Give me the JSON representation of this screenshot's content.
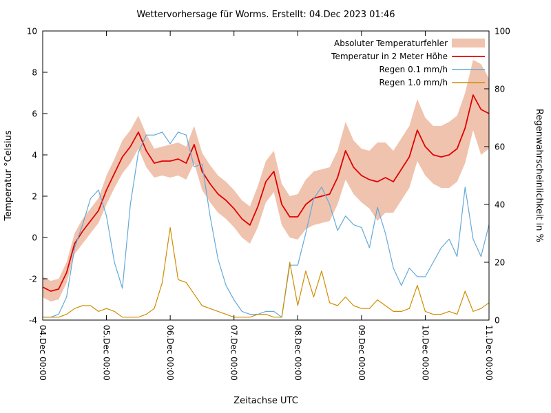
{
  "chart_data": {
    "type": "line",
    "title": "Wettervorhersage für Worms. Erstellt: 04.Dec 2023 01:46",
    "xlabel": "Zeitachse UTC",
    "ylabel_left": "Temperatur °Celsius",
    "ylabel_right": "Regenwahrscheinlichkeit in %",
    "grid": false,
    "legend_position": "top-right-inside",
    "x_step_hours": 3,
    "x_range_hours": [
      0,
      168
    ],
    "x_tick_labels": [
      "04.Dec 00:00",
      "05.Dec 00:00",
      "06.Dec 00:00",
      "07.Dec 00:00",
      "08.Dec 00:00",
      "09.Dec 00:00",
      "10.Dec 00:00",
      "11.Dec 00:00"
    ],
    "y_left": {
      "min": -4,
      "max": 10,
      "ticks": [
        -4,
        -2,
        0,
        2,
        4,
        6,
        8,
        10
      ]
    },
    "y_right": {
      "min": 0,
      "max": 100,
      "ticks": [
        0,
        20,
        40,
        60,
        80,
        100
      ]
    },
    "axis_color": "#000000",
    "series": [
      {
        "name": "Absoluter Temperaturfehler",
        "type": "band",
        "axis": "left",
        "color": "#f0c3ae",
        "description": "half-width of error band around temperature, °C",
        "values": [
          0.5,
          0.5,
          0.5,
          0.5,
          0.5,
          0.6,
          0.6,
          0.6,
          0.7,
          0.7,
          0.8,
          0.8,
          0.8,
          0.8,
          0.7,
          0.7,
          0.8,
          0.8,
          0.8,
          0.9,
          0.9,
          0.9,
          0.9,
          0.9,
          0.9,
          0.9,
          0.9,
          1.0,
          1.0,
          1.0,
          1.0,
          1.0,
          1.1,
          1.2,
          1.3,
          1.3,
          1.3,
          1.3,
          1.4,
          1.3,
          1.3,
          1.4,
          1.9,
          1.7,
          1.5,
          1.5,
          1.5,
          1.5,
          1.4,
          1.4,
          1.5,
          1.6,
          1.6,
          1.7,
          1.7,
          2.2,
          1.7
        ]
      },
      {
        "name": "Temperatur in 2 Meter Höhe",
        "type": "line",
        "axis": "left",
        "color": "#e00000",
        "unit": "°C",
        "values": [
          -2.4,
          -2.6,
          -2.5,
          -1.7,
          -0.3,
          0.3,
          0.8,
          1.3,
          2.3,
          3.1,
          3.9,
          4.4,
          5.1,
          4.2,
          3.6,
          3.7,
          3.7,
          3.8,
          3.6,
          4.5,
          3.2,
          2.6,
          2.1,
          1.8,
          1.4,
          0.9,
          0.6,
          1.5,
          2.7,
          3.2,
          1.6,
          1.0,
          1.0,
          1.6,
          1.9,
          2.0,
          2.1,
          2.9,
          4.2,
          3.4,
          3.0,
          2.8,
          2.7,
          2.9,
          2.7,
          3.3,
          3.9,
          5.2,
          4.4,
          4.0,
          3.9,
          4.0,
          4.3,
          5.3,
          6.9,
          6.2,
          6.0
        ]
      },
      {
        "name": "Regen 0.1 mm/h",
        "type": "line",
        "axis": "right",
        "color": "#62a9d8",
        "unit": "%",
        "values": [
          1,
          1,
          2,
          8,
          25,
          33,
          42,
          45,
          36,
          20,
          11,
          40,
          58,
          64,
          64,
          65,
          61,
          65,
          64,
          53,
          54,
          36,
          21,
          12,
          7,
          3,
          2,
          2,
          3,
          3,
          1,
          19,
          19,
          30,
          42,
          46,
          40,
          31,
          36,
          33,
          32,
          25,
          39,
          30,
          18,
          12,
          18,
          15,
          15,
          20,
          25,
          28,
          22,
          46,
          28,
          22,
          33
        ]
      },
      {
        "name": "Regen 1.0 mm/h",
        "type": "line",
        "axis": "right",
        "color": "#d08d00",
        "unit": "%",
        "values": [
          1,
          1,
          1,
          2,
          4,
          5,
          5,
          3,
          4,
          3,
          1,
          1,
          1,
          2,
          4,
          13,
          32,
          14,
          13,
          9,
          5,
          4,
          3,
          2,
          1,
          1,
          1,
          2,
          2,
          1,
          1,
          20,
          5,
          17,
          8,
          17,
          6,
          5,
          8,
          5,
          4,
          4,
          7,
          5,
          3,
          3,
          4,
          12,
          3,
          2,
          2,
          3,
          2,
          10,
          3,
          4,
          6
        ]
      }
    ]
  }
}
